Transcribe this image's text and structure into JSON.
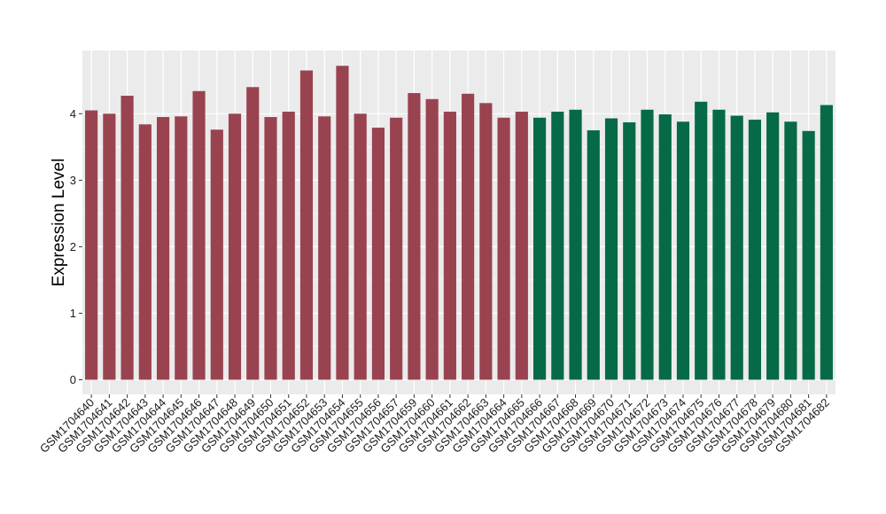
{
  "chart_data": {
    "type": "bar",
    "ylabel": "Expression Level",
    "xlabel": "",
    "ylim": [
      -0.22,
      4.95
    ],
    "yticks": [
      0,
      1,
      2,
      3,
      4
    ],
    "grid": true,
    "colors": {
      "group_a": "#9a4350",
      "group_b": "#066a46",
      "panel": "#ebebeb",
      "gridline": "#ffffff"
    },
    "categories": [
      "GSM1704640",
      "GSM1704641",
      "GSM1704642",
      "GSM1704643",
      "GSM1704644",
      "GSM1704645",
      "GSM1704646",
      "GSM1704647",
      "GSM1704648",
      "GSM1704649",
      "GSM1704650",
      "GSM1704651",
      "GSM1704652",
      "GSM1704653",
      "GSM1704654",
      "GSM1704655",
      "GSM1704656",
      "GSM1704657",
      "GSM1704659",
      "GSM1704660",
      "GSM1704661",
      "GSM1704662",
      "GSM1704663",
      "GSM1704664",
      "GSM1704665",
      "GSM1704666",
      "GSM1704667",
      "GSM1704668",
      "GSM1704669",
      "GSM1704670",
      "GSM1704671",
      "GSM1704672",
      "GSM1704673",
      "GSM1704674",
      "GSM1704675",
      "GSM1704676",
      "GSM1704677",
      "GSM1704678",
      "GSM1704679",
      "GSM1704680",
      "GSM1704681",
      "GSM1704682"
    ],
    "values": [
      4.05,
      4.0,
      4.27,
      3.84,
      3.95,
      3.96,
      4.34,
      3.76,
      4.0,
      4.4,
      3.95,
      4.03,
      4.65,
      3.96,
      4.72,
      4.0,
      3.79,
      3.94,
      4.31,
      4.22,
      4.03,
      4.3,
      4.16,
      3.94,
      4.03,
      3.94,
      4.03,
      4.06,
      3.75,
      3.93,
      3.87,
      4.06,
      3.99,
      3.88,
      4.18,
      4.06,
      3.97,
      3.91,
      4.02,
      3.88,
      3.74,
      4.13
    ],
    "groups": [
      "a",
      "a",
      "a",
      "a",
      "a",
      "a",
      "a",
      "a",
      "a",
      "a",
      "a",
      "a",
      "a",
      "a",
      "a",
      "a",
      "a",
      "a",
      "a",
      "a",
      "a",
      "a",
      "a",
      "a",
      "a",
      "b",
      "b",
      "b",
      "b",
      "b",
      "b",
      "b",
      "b",
      "b",
      "b",
      "b",
      "b",
      "b",
      "b",
      "b",
      "b",
      "b"
    ]
  }
}
